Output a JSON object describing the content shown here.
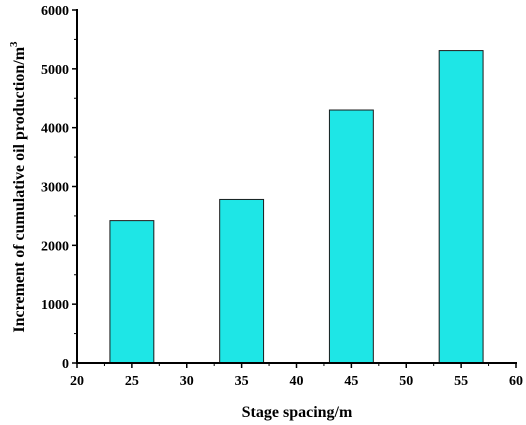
{
  "chart_data": {
    "type": "bar",
    "xlabel": "Stage spacing/m",
    "ylabel": "Increment of cumulative oil production/m",
    "ylabel_superscript": "3",
    "xlim": [
      20,
      60
    ],
    "ylim": [
      0,
      6000
    ],
    "x_ticks": [
      20,
      25,
      30,
      35,
      40,
      45,
      50,
      55,
      60
    ],
    "y_ticks": [
      0,
      1000,
      2000,
      3000,
      4000,
      5000,
      6000
    ],
    "bar_width": 4,
    "bar_color": "#1ee6e6",
    "bar_edge_color": "#1a1a1a",
    "grid": false,
    "x": [
      25,
      35,
      45,
      55
    ],
    "values": [
      2420,
      2780,
      4300,
      5310
    ]
  }
}
